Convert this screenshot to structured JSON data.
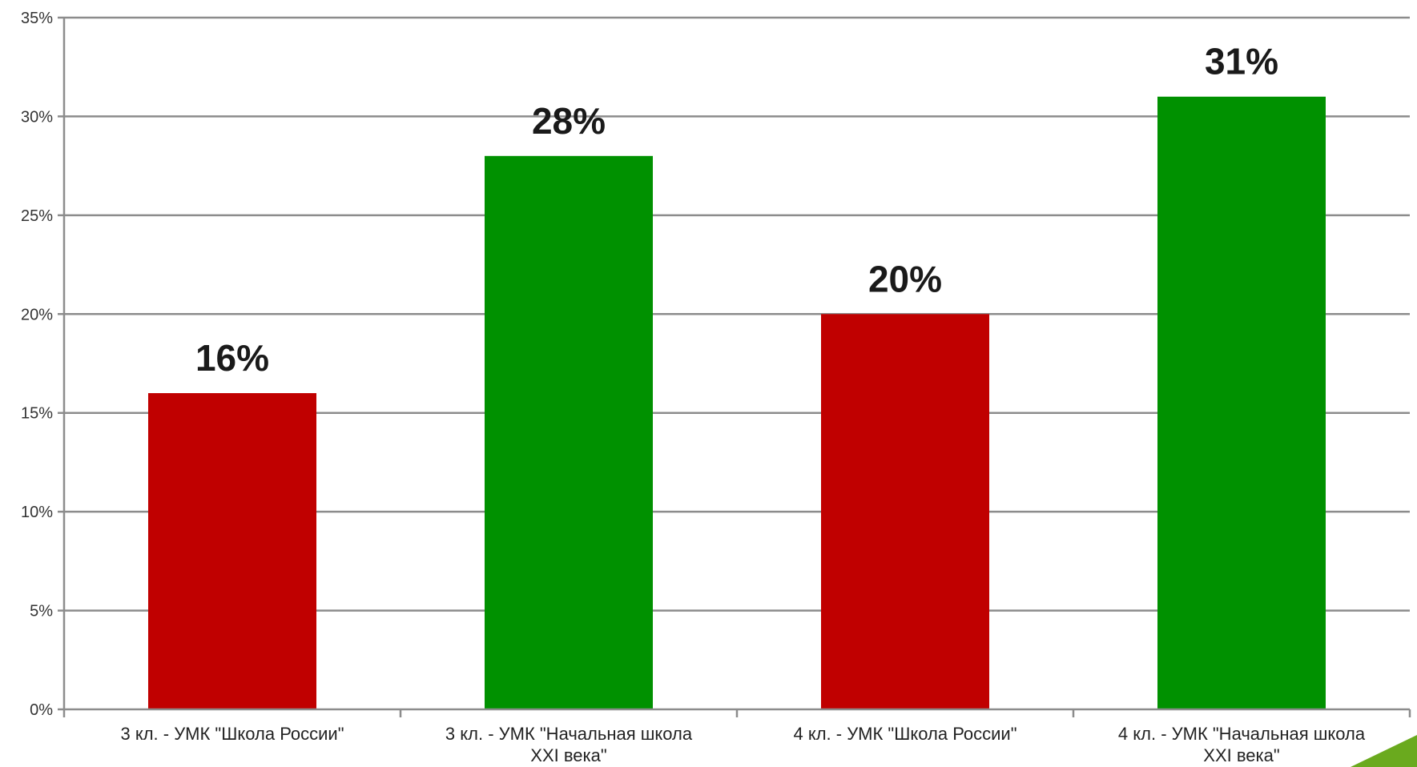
{
  "chart_data": {
    "type": "bar",
    "categories": [
      [
        "3 кл.  - УМК \"Школа России\""
      ],
      [
        "3 кл. - УМК \"Начальная школа",
        "XXI века\""
      ],
      [
        "4 кл.  - УМК \"Школа России\""
      ],
      [
        "4 кл. - УМК \"Начальная школа",
        "XXI века\""
      ]
    ],
    "values": [
      16,
      28,
      20,
      31
    ],
    "data_labels": [
      "16%",
      "28%",
      "20%",
      "31%"
    ],
    "colors": [
      "#c00000",
      "#009100",
      "#c00000",
      "#009100"
    ],
    "ylim": [
      0,
      35
    ],
    "yticks": [
      0,
      5,
      10,
      15,
      20,
      25,
      30,
      35
    ],
    "ytick_labels": [
      "0%",
      "5%",
      "10%",
      "15%",
      "20%",
      "25%",
      "30%",
      "35%"
    ],
    "grid": true,
    "title": "",
    "xlabel": "",
    "ylabel": ""
  },
  "decoration": {
    "corner_arrow_color": "#6aaa1e",
    "corner_arrow_icon": "green-triangle-arrow-icon"
  }
}
